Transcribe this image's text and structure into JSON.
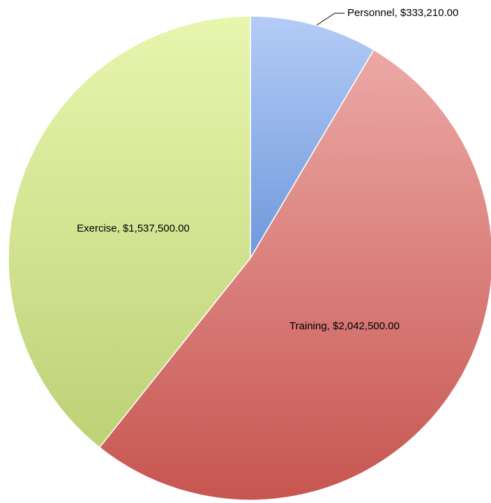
{
  "chart_data": {
    "type": "pie",
    "title": "",
    "start_angle_deg": 0,
    "direction": "clockwise",
    "slices": [
      {
        "label": "Personnel",
        "value": 333210.0,
        "display": "Personnel, $333,210.00",
        "color": "#8fb1ea"
      },
      {
        "label": "Training",
        "value": 2042500.0,
        "display": "Training, $2,042,500.00",
        "color": "#d46a66"
      },
      {
        "label": "Exercise",
        "value": 1537500.0,
        "display": "Exercise, $1,537,500.00",
        "color": "#d4e69a"
      }
    ],
    "legend": "none",
    "labels_on_slices": true
  }
}
